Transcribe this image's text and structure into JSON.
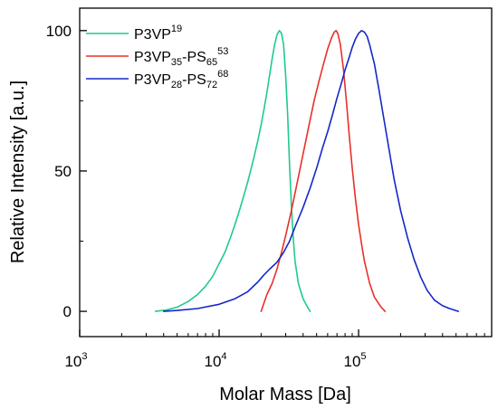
{
  "chart_data": {
    "type": "line",
    "xlabel": "Molar Mass [Da]",
    "ylabel": "Relative Intensity [a.u.]",
    "x_scale": "log",
    "xlim": [
      1000,
      900000
    ],
    "ylim": [
      -9,
      108
    ],
    "x_ticks": [
      {
        "value": 1000,
        "base": "10",
        "exp": "3"
      },
      {
        "value": 10000,
        "base": "10",
        "exp": "4"
      },
      {
        "value": 100000,
        "base": "10",
        "exp": "5"
      }
    ],
    "y_ticks": [
      0,
      50,
      100
    ],
    "grid": false,
    "legend_position": "top-left",
    "series": [
      {
        "name": "P3VP19",
        "legend": [
          {
            "t": "P3VP",
            "s": "n"
          },
          {
            "t": "19",
            "s": "sup"
          }
        ],
        "color": "#1fca8c",
        "points": [
          [
            3500,
            0
          ],
          [
            4200,
            0.5
          ],
          [
            5000,
            1.5
          ],
          [
            6000,
            3.5
          ],
          [
            7000,
            6
          ],
          [
            8000,
            9
          ],
          [
            9000,
            12.5
          ],
          [
            10000,
            17
          ],
          [
            11000,
            21
          ],
          [
            12000,
            26
          ],
          [
            13000,
            31
          ],
          [
            14000,
            36
          ],
          [
            15000,
            41
          ],
          [
            16000,
            46
          ],
          [
            17000,
            51
          ],
          [
            18000,
            56
          ],
          [
            19000,
            61
          ],
          [
            20000,
            66.5
          ],
          [
            21000,
            72
          ],
          [
            22000,
            78
          ],
          [
            23000,
            84
          ],
          [
            24000,
            90
          ],
          [
            25000,
            95
          ],
          [
            26000,
            98.5
          ],
          [
            27000,
            100
          ],
          [
            28000,
            99
          ],
          [
            29000,
            95
          ],
          [
            30000,
            84
          ],
          [
            31000,
            70
          ],
          [
            32000,
            52
          ],
          [
            33000,
            37
          ],
          [
            34000,
            26
          ],
          [
            35000,
            18
          ],
          [
            37000,
            10
          ],
          [
            40000,
            4.5
          ],
          [
            43000,
            1.5
          ],
          [
            45000,
            0
          ]
        ]
      },
      {
        "name": "P3VP35-PS6553",
        "legend": [
          {
            "t": "P3VP",
            "s": "n"
          },
          {
            "t": "35",
            "s": "sub"
          },
          {
            "t": "-PS",
            "s": "n"
          },
          {
            "t": "65",
            "s": "sub"
          },
          {
            "t": "53",
            "s": "sup"
          }
        ],
        "color": "#e8302a",
        "points": [
          [
            20000,
            0
          ],
          [
            21000,
            3
          ],
          [
            22000,
            6
          ],
          [
            24000,
            10
          ],
          [
            26000,
            15
          ],
          [
            28000,
            21
          ],
          [
            30000,
            27
          ],
          [
            33000,
            36
          ],
          [
            36000,
            45
          ],
          [
            40000,
            56
          ],
          [
            44000,
            66
          ],
          [
            48000,
            75
          ],
          [
            52000,
            82
          ],
          [
            56000,
            88
          ],
          [
            60000,
            93.5
          ],
          [
            64000,
            97.5
          ],
          [
            67000,
            99.5
          ],
          [
            69000,
            100
          ],
          [
            71000,
            99
          ],
          [
            74000,
            95
          ],
          [
            78000,
            86
          ],
          [
            82000,
            74
          ],
          [
            86000,
            62
          ],
          [
            90000,
            51
          ],
          [
            95000,
            40
          ],
          [
            100000,
            31
          ],
          [
            105000,
            24
          ],
          [
            110000,
            18
          ],
          [
            120000,
            10
          ],
          [
            130000,
            5
          ],
          [
            145000,
            1.5
          ],
          [
            155000,
            0
          ]
        ]
      },
      {
        "name": "P3VP28-PS7268",
        "legend": [
          {
            "t": "P3VP",
            "s": "n"
          },
          {
            "t": "28",
            "s": "sub"
          },
          {
            "t": "-PS",
            "s": "n"
          },
          {
            "t": "72",
            "s": "sub"
          },
          {
            "t": "68",
            "s": "sup"
          }
        ],
        "color": "#1428c8",
        "points": [
          [
            4000,
            0
          ],
          [
            5000,
            0.3
          ],
          [
            7000,
            1
          ],
          [
            10000,
            2.5
          ],
          [
            13000,
            4.5
          ],
          [
            16000,
            7
          ],
          [
            19000,
            10.5
          ],
          [
            21000,
            13
          ],
          [
            23000,
            15
          ],
          [
            26000,
            17.5
          ],
          [
            29000,
            21
          ],
          [
            32000,
            25
          ],
          [
            35000,
            30
          ],
          [
            40000,
            37
          ],
          [
            45000,
            44
          ],
          [
            50000,
            51
          ],
          [
            55000,
            58
          ],
          [
            60000,
            64
          ],
          [
            65000,
            70
          ],
          [
            70000,
            76
          ],
          [
            75000,
            81
          ],
          [
            80000,
            86
          ],
          [
            85000,
            90
          ],
          [
            90000,
            94
          ],
          [
            95000,
            97
          ],
          [
            100000,
            99
          ],
          [
            105000,
            100
          ],
          [
            110000,
            99.5
          ],
          [
            115000,
            98
          ],
          [
            120000,
            95
          ],
          [
            130000,
            88
          ],
          [
            140000,
            79
          ],
          [
            150000,
            70
          ],
          [
            165000,
            58
          ],
          [
            180000,
            47
          ],
          [
            200000,
            36
          ],
          [
            225000,
            26
          ],
          [
            250000,
            18.5
          ],
          [
            280000,
            12
          ],
          [
            310000,
            7.5
          ],
          [
            350000,
            4
          ],
          [
            400000,
            2
          ],
          [
            450000,
            1
          ],
          [
            520000,
            0
          ]
        ]
      }
    ]
  }
}
